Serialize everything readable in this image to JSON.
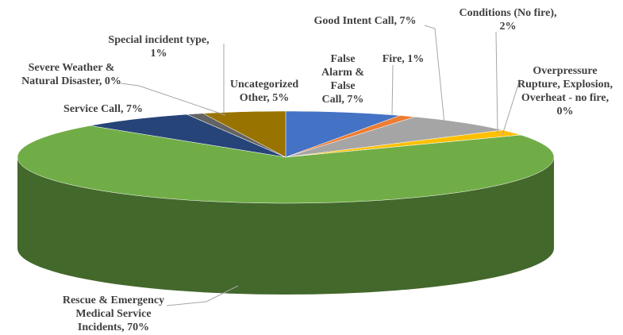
{
  "chart_data": {
    "type": "pie3d",
    "values": [
      7,
      1,
      7,
      2,
      0,
      70,
      7,
      0,
      1,
      5
    ],
    "value_labels": [
      "False Alarm & False Call, 7%",
      "Fire, 1%",
      "Good Intent Call, 7%",
      "Conditions (No fire), 2%",
      "Overpressure Rupture, Explosion, Overheat - no fire, 0%",
      "Rescue & Emergency Medical Service Incidents, 70%",
      "Service Call, 7%",
      "Severe Weather & Natural Disaster, 0%",
      "Special incident type, 1%",
      "Uncategorized Other, 5%"
    ],
    "colors": [
      "#4472c4",
      "#ed7d31",
      "#a5a5a5",
      "#ffc000",
      "#5b9bd5",
      "#70ad47",
      "#264478",
      "#9e480e",
      "#636363",
      "#997300"
    ]
  }
}
